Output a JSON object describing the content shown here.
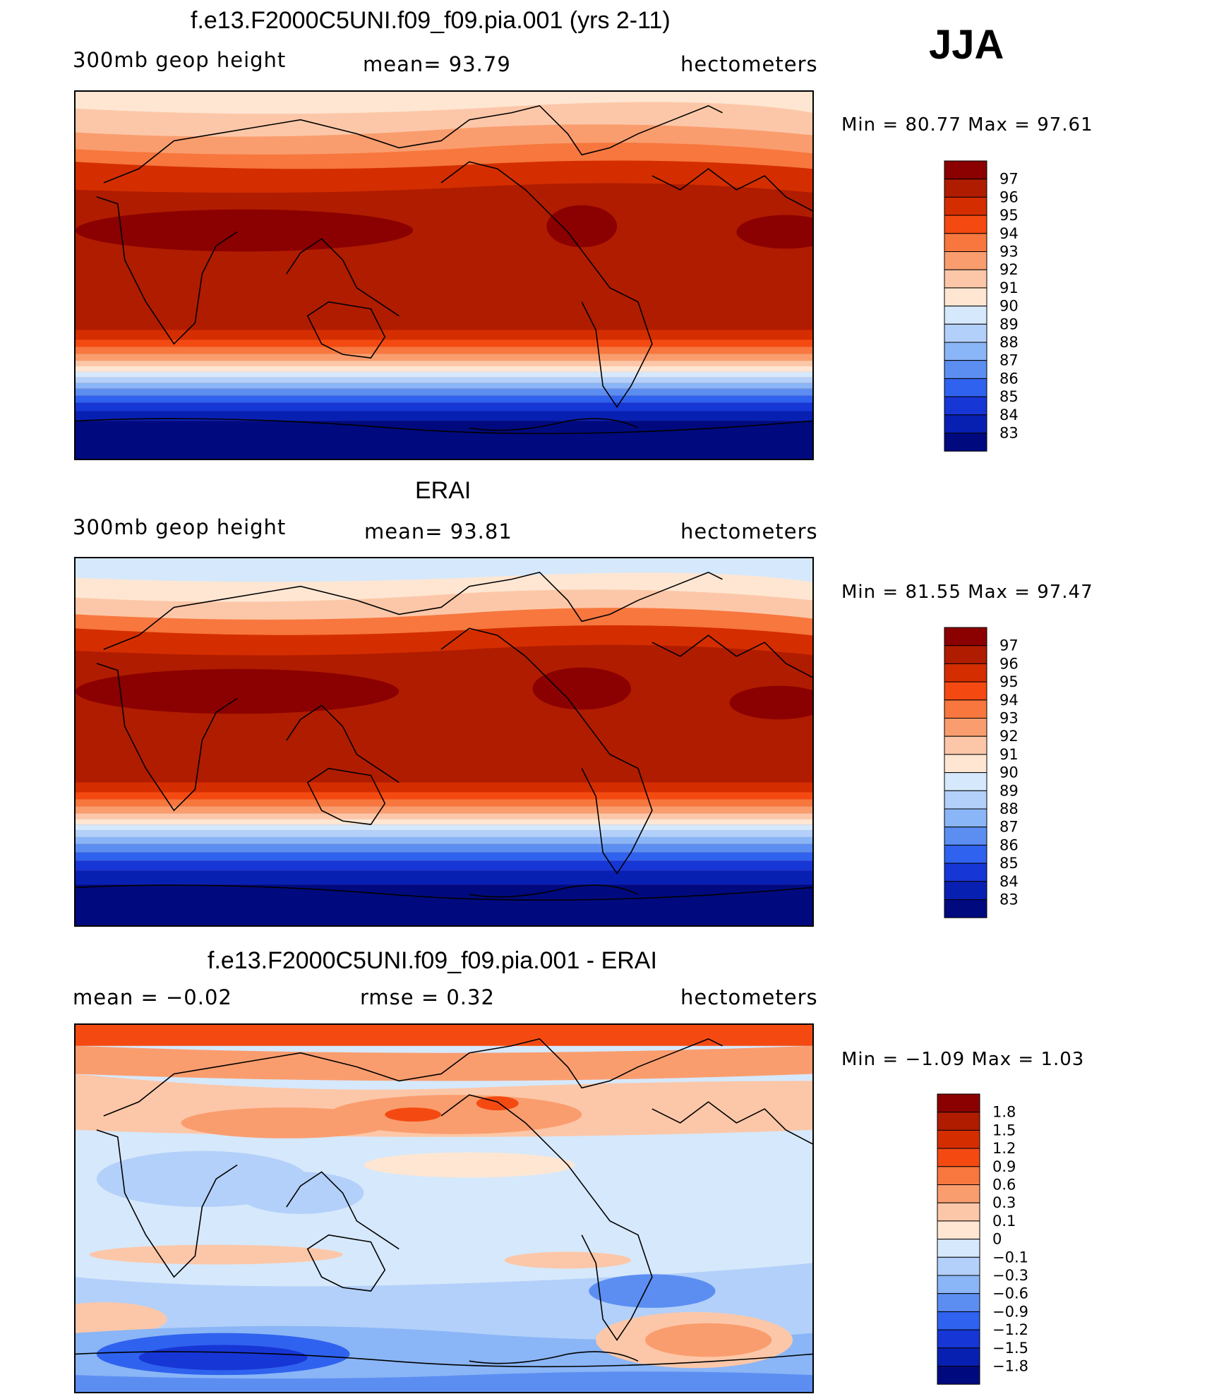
{
  "season": "JJA",
  "panels": [
    {
      "title": "f.e13.F2000C5UNI.f09_f09.pia.001 (yrs 2-11)",
      "left_label": "300mb  geop  height",
      "center_label": "mean=   93.79",
      "right_label": "hectometers",
      "minmax": "Min  =    80.77  Max  =    97.61"
    },
    {
      "title": "ERAI",
      "left_label": "300mb  geop  height",
      "center_label": "mean=   93.81",
      "right_label": "hectometers",
      "minmax": "Min  =    81.55  Max  =    97.47"
    },
    {
      "title": "f.e13.F2000C5UNI.f09_f09.pia.001 - ERAI",
      "left_label": "mean  =    −0.02",
      "center_label": "rmse  =     0.32",
      "right_label": "hectometers",
      "minmax": "Min  =   −1.09  Max  =      1.03"
    }
  ],
  "colorbars": {
    "height": {
      "labels": [
        "97",
        "96",
        "95",
        "94",
        "93",
        "92",
        "91",
        "90",
        "89",
        "88",
        "87",
        "86",
        "85",
        "84",
        "83"
      ],
      "colors": [
        "#8b0000",
        "#b01c00",
        "#d42e00",
        "#f44a12",
        "#f7773e",
        "#fa9d6e",
        "#fcc7a8",
        "#fee6d2",
        "#d6e8fb",
        "#b3d0fa",
        "#8ab5f6",
        "#5c8ef2",
        "#2f62ee",
        "#1736d6",
        "#0820b2",
        "#000a7e"
      ]
    },
    "diff": {
      "labels": [
        "1.8",
        "1.5",
        "1.2",
        "0.9",
        "0.6",
        "0.3",
        "0.1",
        "0",
        "−0.1",
        "−0.3",
        "−0.6",
        "−0.9",
        "−1.2",
        "−1.5",
        "−1.8"
      ],
      "colors": [
        "#8b0000",
        "#b01c00",
        "#d42e00",
        "#f44a12",
        "#f7773e",
        "#fa9d6e",
        "#fcc7a8",
        "#fee6d2",
        "#d6e8fb",
        "#b3d0fa",
        "#8ab5f6",
        "#5c8ef2",
        "#2f62ee",
        "#1736d6",
        "#0820b2",
        "#000a7e"
      ]
    }
  }
}
